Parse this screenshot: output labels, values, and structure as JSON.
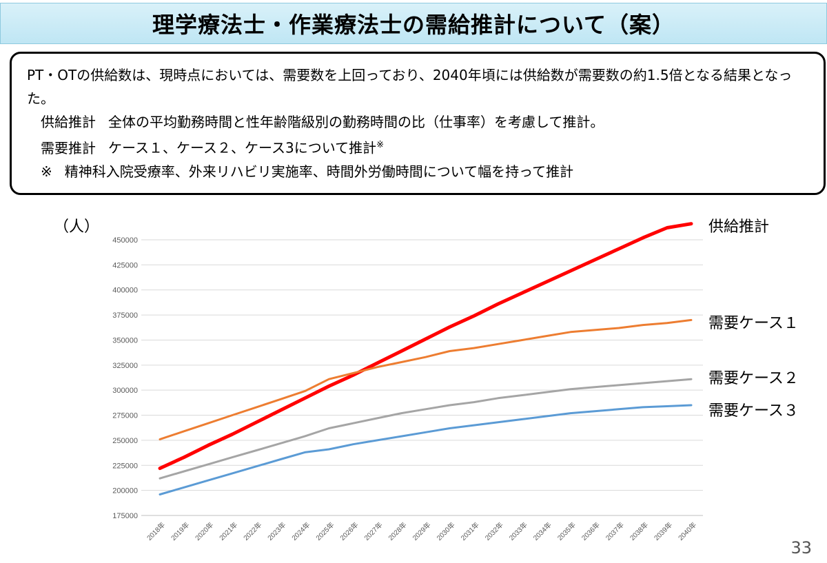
{
  "title": "理学療法士・作業療法士の需給推計について（案）",
  "summary": {
    "line1": "PT・OTの供給数は、現時点においては、需要数を上回っており、2040年頃には供給数が需要数の約1.5倍となる結果となった。",
    "supply_tag": "供給推計",
    "supply_text": "全体の平均勤務時間と性年齢階級別の勤務時間の比（仕事率）を考慮して推計。",
    "demand_tag": "需要推計",
    "demand_text": "ケース１、ケース２、ケース3について推計",
    "demand_mark": "※",
    "note_mark": "※",
    "note_text": "精神科入院受療率、外来リハビリ実施率、時間外労働時間について幅を持って推計"
  },
  "page_number": "33",
  "chart_data": {
    "type": "line",
    "unit_label": "（人）",
    "x": [
      "2018年",
      "2019年",
      "2020年",
      "2021年",
      "2022年",
      "2023年",
      "2024年",
      "2025年",
      "2026年",
      "2027年",
      "2028年",
      "2029年",
      "2030年",
      "2031年",
      "2032年",
      "2033年",
      "2034年",
      "2035年",
      "2036年",
      "2037年",
      "2038年",
      "2039年",
      "2040年"
    ],
    "ylim": [
      175000,
      450000
    ],
    "yticks": [
      175000,
      200000,
      225000,
      250000,
      275000,
      300000,
      325000,
      350000,
      375000,
      400000,
      425000,
      450000
    ],
    "grid": true,
    "series": [
      {
        "name": "供給推計",
        "color": "#ff0000",
        "width": 5,
        "values": [
          222000,
          233000,
          245000,
          256000,
          268000,
          280000,
          292000,
          304000,
          315000,
          327000,
          339000,
          351000,
          363000,
          374000,
          386000,
          397000,
          408000,
          419000,
          430000,
          441000,
          452000,
          462000,
          466000
        ]
      },
      {
        "name": "需要ケース1",
        "label": "需要ケース１",
        "color": "#ed7d31",
        "width": 3,
        "values": [
          251000,
          259000,
          267000,
          275000,
          283000,
          291000,
          299000,
          311000,
          317000,
          323000,
          328000,
          333000,
          339000,
          342000,
          346000,
          350000,
          354000,
          358000,
          360000,
          362000,
          365000,
          367000,
          370000
        ]
      },
      {
        "name": "需要ケース2",
        "label": "需要ケース２",
        "color": "#a5a5a5",
        "width": 3,
        "values": [
          212000,
          219000,
          226000,
          233000,
          240000,
          247000,
          254000,
          262000,
          267000,
          272000,
          277000,
          281000,
          285000,
          288000,
          292000,
          295000,
          298000,
          301000,
          303000,
          305000,
          307000,
          309000,
          311000
        ]
      },
      {
        "name": "需要ケース3",
        "label": "需要ケース３",
        "color": "#5b9bd5",
        "width": 3,
        "values": [
          196000,
          203000,
          210000,
          217000,
          224000,
          231000,
          238000,
          241000,
          246000,
          250000,
          254000,
          258000,
          262000,
          265000,
          268000,
          271000,
          274000,
          277000,
          279000,
          281000,
          283000,
          284000,
          285000
        ]
      }
    ]
  }
}
